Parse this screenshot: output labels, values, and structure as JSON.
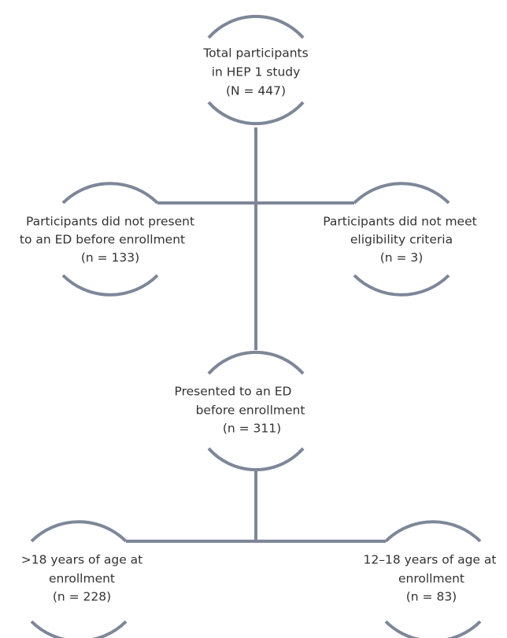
{
  "nodes": [
    {
      "lines": [
        "Total participants",
        "in HEP 1 study",
        "(N = 447)"
      ]
    },
    {
      "lines": [
        "Participants did not present",
        "to an ED before enrollment",
        "(n = 133)"
      ]
    },
    {
      "lines": [
        "Participants did not meet",
        "eligibility criteria",
        "(n = 3)"
      ]
    },
    {
      "lines": [
        "Presented to an ED",
        "before enrollment",
        "(n = 311)"
      ]
    },
    {
      "lines": [
        ">18 years of age at",
        "enrollment",
        "(n = 228)"
      ]
    },
    {
      "lines": [
        "12–18 years of age at",
        "enrollment",
        "(n = 83)"
      ]
    }
  ]
}
